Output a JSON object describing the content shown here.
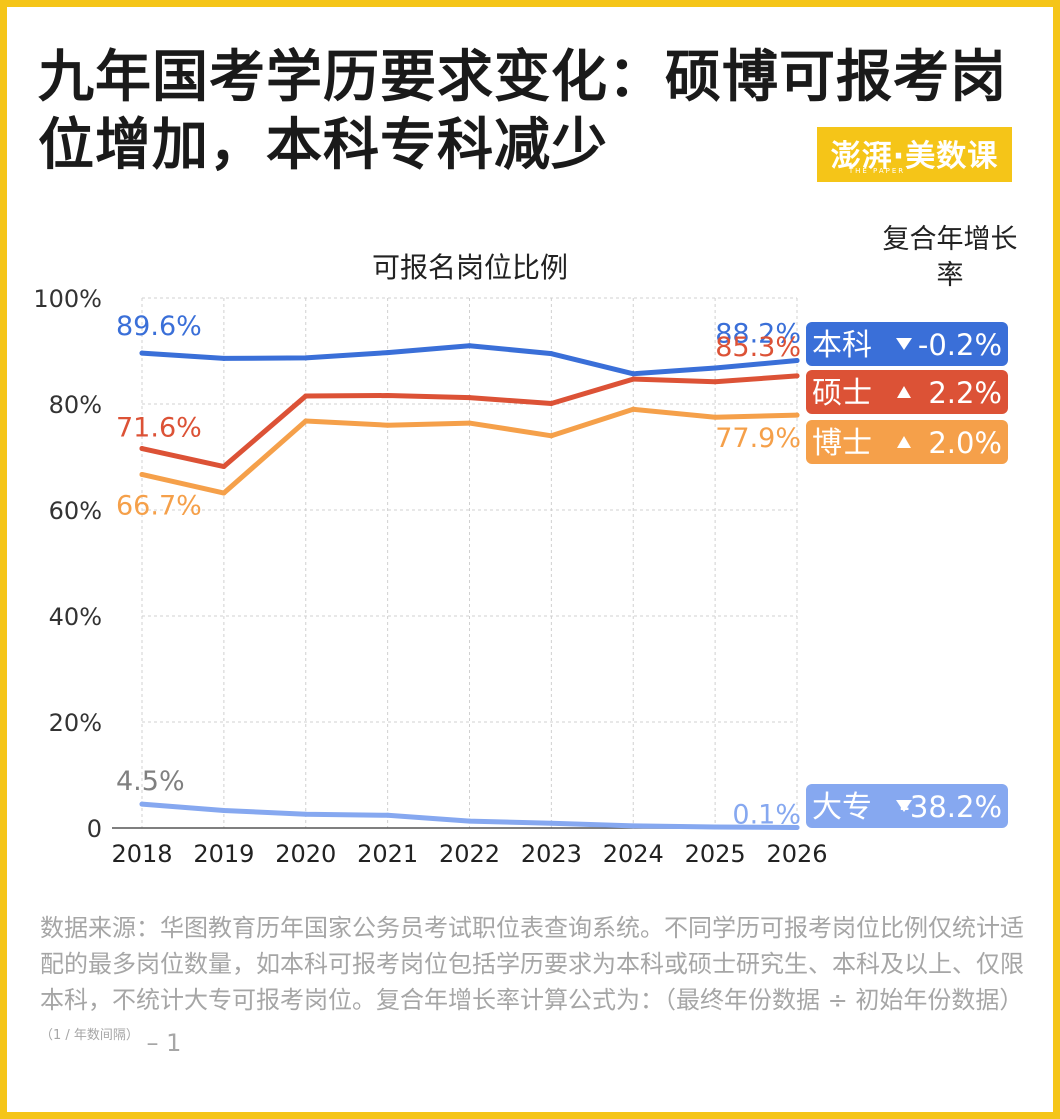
{
  "header": {
    "title": "九年国考学历要求变化：硕博可报考岗位增加，本科专科减少",
    "logo_text": "澎湃·美数课",
    "logo_sub": "THE PAPER"
  },
  "chart_data": {
    "type": "line",
    "title": "可报名岗位比例",
    "x": [
      "2018",
      "2019",
      "2020",
      "2021",
      "2022",
      "2023",
      "2024",
      "2025",
      "2026"
    ],
    "yticks": [
      "0",
      "20%",
      "40%",
      "60%",
      "80%",
      "100%"
    ],
    "ylim": [
      0,
      100
    ],
    "grid": true,
    "cagr_title": "复合年增长率",
    "series": [
      {
        "name": "本科",
        "color": "#3a6fd8",
        "values": [
          89.6,
          88.6,
          88.7,
          89.7,
          91.0,
          89.5,
          85.7,
          86.8,
          88.2
        ],
        "start_label": "89.6%",
        "end_label": "88.2%",
        "cagr": "-0.2%",
        "arrow": "down"
      },
      {
        "name": "硕士",
        "color": "#dc5236",
        "values": [
          71.6,
          68.2,
          81.5,
          81.6,
          81.2,
          80.1,
          84.7,
          84.2,
          85.3
        ],
        "start_label": "71.6%",
        "end_label": "85.3%",
        "cagr": "2.2%",
        "arrow": "up"
      },
      {
        "name": "博士",
        "color": "#f5a04a",
        "values": [
          66.7,
          63.2,
          76.8,
          76.0,
          76.4,
          74.0,
          79.0,
          77.5,
          77.9
        ],
        "start_label": "66.7%",
        "end_label": "77.9%",
        "cagr": "2.0%",
        "arrow": "up"
      },
      {
        "name": "大专",
        "color": "#86a8f0",
        "values": [
          4.5,
          3.3,
          2.6,
          2.4,
          1.3,
          0.9,
          0.4,
          0.2,
          0.1
        ],
        "start_label": "4.5%",
        "end_label": "0.1%",
        "cagr": "-38.2%",
        "arrow": "down"
      }
    ]
  },
  "footnote": {
    "text": "数据来源：华图教育历年国家公务员考试职位表查询系统。不同学历可报考岗位比例仅统计适配的最多岗位数量，如本科可报考岗位包括学历要求为本科或硕士研究生、本科及以上、仅限本科，不统计大专可报考岗位。复合年增长率计算公式为：（最终年份数据 ÷ 初始年份数据）",
    "superscript": "（1 / 年数间隔）",
    "suffix": " – 1"
  }
}
